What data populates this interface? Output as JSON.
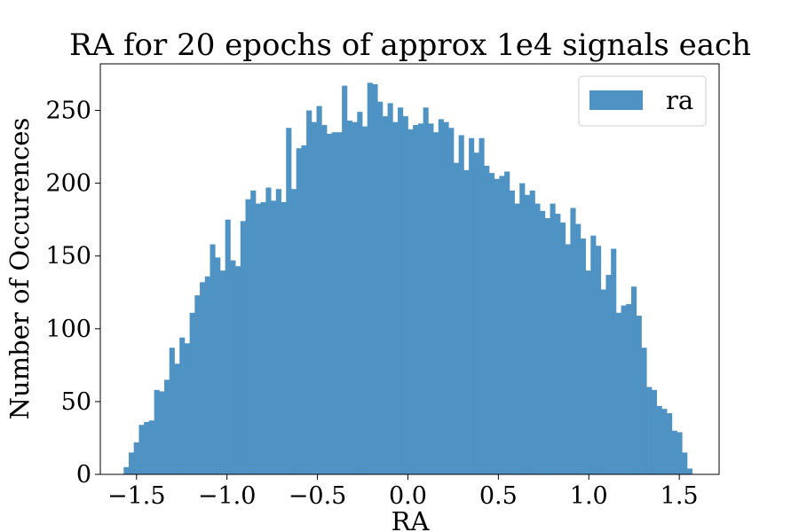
{
  "chart_data": {
    "type": "bar",
    "title": "RA for 20 epochs of approx 1e4 signals each",
    "xlabel": "RA",
    "ylabel": "Number of Occurences",
    "xlim": [
      -1.7,
      1.72
    ],
    "ylim": [
      0,
      282
    ],
    "xticks": [
      -1.5,
      -1.0,
      -0.5,
      0.0,
      0.5,
      1.0,
      1.5
    ],
    "xtick_labels": [
      "−1.5",
      "−1.0",
      "−0.5",
      "0.0",
      "0.5",
      "1.0",
      "1.5"
    ],
    "yticks": [
      0,
      50,
      100,
      150,
      200,
      250
    ],
    "ytick_labels": [
      "0",
      "50",
      "100",
      "150",
      "200",
      "250"
    ],
    "legend": {
      "position": "top-right",
      "entries": [
        "ra"
      ]
    },
    "grid": false,
    "color": "#4f93c4",
    "series": [
      {
        "name": "ra",
        "bin_start": -1.571,
        "bin_end": 1.571,
        "values": [
          5,
          15,
          22,
          34,
          36,
          37,
          58,
          57,
          65,
          87,
          76,
          94,
          90,
          111,
          123,
          132,
          136,
          158,
          149,
          140,
          175,
          147,
          143,
          174,
          189,
          195,
          186,
          187,
          197,
          188,
          196,
          187,
          238,
          196,
          224,
          226,
          250,
          242,
          253,
          240,
          234,
          235,
          235,
          267,
          243,
          242,
          249,
          239,
          269,
          268,
          256,
          246,
          255,
          242,
          252,
          246,
          237,
          240,
          241,
          252,
          241,
          235,
          244,
          242,
          238,
          214,
          233,
          209,
          231,
          221,
          231,
          212,
          207,
          203,
          205,
          208,
          195,
          186,
          200,
          192,
          195,
          186,
          181,
          176,
          186,
          179,
          173,
          158,
          183,
          172,
          162,
          140,
          164,
          157,
          127,
          137,
          155,
          111,
          116,
          117,
          129,
          109,
          87,
          60,
          58,
          47,
          45,
          42,
          30,
          29,
          15,
          4
        ]
      }
    ]
  }
}
